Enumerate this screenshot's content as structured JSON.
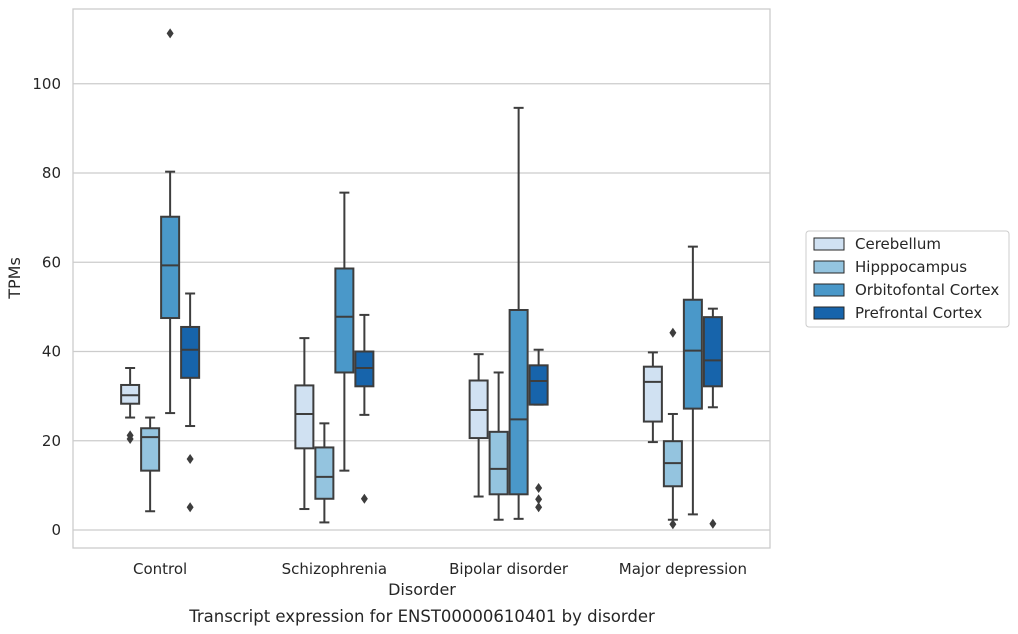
{
  "chart_data": {
    "type": "box",
    "caption": "Transcript expression for ENST00000610401 by disorder",
    "xlabel": "Disorder",
    "ylabel": "TPMs",
    "ylim": [
      -4,
      117
    ],
    "yticks": [
      0,
      20,
      40,
      60,
      80,
      100
    ],
    "grid": "horizontal",
    "legend_placement": "right",
    "categories": [
      "Control",
      "Schizophrenia",
      "Bipolar disorder",
      "Major depression"
    ],
    "series": [
      {
        "name": "Cerebellum",
        "color": "#d0e1f2",
        "boxes": [
          {
            "whislo": 25.2,
            "q1": 28.3,
            "med": 30.2,
            "q3": 32.5,
            "whishi": 36.3,
            "fliers": [
              20.4,
              21.2
            ]
          },
          {
            "whislo": 4.7,
            "q1": 18.3,
            "med": 26.0,
            "q3": 32.4,
            "whishi": 43.0,
            "fliers": []
          },
          {
            "whislo": 7.5,
            "q1": 20.6,
            "med": 26.9,
            "q3": 33.5,
            "whishi": 39.4,
            "fliers": []
          },
          {
            "whislo": 19.7,
            "q1": 24.3,
            "med": 33.2,
            "q3": 36.6,
            "whishi": 39.8,
            "fliers": []
          }
        ]
      },
      {
        "name": "Hipppocampus",
        "color": "#94c4df",
        "boxes": [
          {
            "whislo": 4.2,
            "q1": 13.3,
            "med": 20.8,
            "q3": 22.8,
            "whishi": 25.2,
            "fliers": []
          },
          {
            "whislo": 1.7,
            "q1": 7.0,
            "med": 11.9,
            "q3": 18.5,
            "whishi": 23.9,
            "fliers": []
          },
          {
            "whislo": 2.3,
            "q1": 8.0,
            "med": 13.7,
            "q3": 22.0,
            "whishi": 35.3,
            "fliers": []
          },
          {
            "whislo": 2.3,
            "q1": 9.8,
            "med": 15.0,
            "q3": 19.9,
            "whishi": 26.0,
            "fliers": [
              1.3,
              44.2
            ]
          }
        ]
      },
      {
        "name": "Orbitofontal Cortex",
        "color": "#4a98c9",
        "boxes": [
          {
            "whislo": 26.2,
            "q1": 47.5,
            "med": 59.3,
            "q3": 70.2,
            "whishi": 80.3,
            "fliers": [
              111.3
            ]
          },
          {
            "whislo": 13.3,
            "q1": 35.3,
            "med": 47.8,
            "q3": 58.6,
            "whishi": 75.6,
            "fliers": []
          },
          {
            "whislo": 2.5,
            "q1": 8.0,
            "med": 24.8,
            "q3": 49.3,
            "whishi": 94.6,
            "fliers": []
          },
          {
            "whislo": 3.5,
            "q1": 27.2,
            "med": 40.2,
            "q3": 51.6,
            "whishi": 63.5,
            "fliers": []
          }
        ]
      },
      {
        "name": "Prefrontal Cortex",
        "color": "#1764ab",
        "boxes": [
          {
            "whislo": 23.3,
            "q1": 34.1,
            "med": 40.4,
            "q3": 45.5,
            "whishi": 53.0,
            "fliers": [
              5.1,
              15.9
            ]
          },
          {
            "whislo": 25.8,
            "q1": 32.2,
            "med": 36.3,
            "q3": 40.0,
            "whishi": 48.2,
            "fliers": [
              7.0
            ]
          },
          {
            "whislo": 28.1,
            "q1": 28.1,
            "med": 33.4,
            "q3": 36.9,
            "whishi": 40.4,
            "fliers": [
              5.1,
              6.9,
              9.4
            ]
          },
          {
            "whislo": 27.5,
            "q1": 32.2,
            "med": 38.0,
            "q3": 47.7,
            "whishi": 49.6,
            "fliers": [
              1.4
            ]
          }
        ]
      }
    ]
  }
}
